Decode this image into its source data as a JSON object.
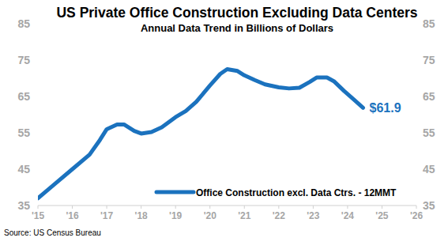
{
  "chart_data": {
    "type": "line",
    "title": "US Private Office Construction Excluding Data Centers",
    "subtitle": "Annual Data Trend in Billions of Dollars",
    "source": "Source: US Census Bureau",
    "x": [
      2015.0,
      2015.5,
      2016.0,
      2016.5,
      2016.8,
      2017.0,
      2017.3,
      2017.5,
      2017.8,
      2018.0,
      2018.3,
      2018.6,
      2019.0,
      2019.3,
      2019.6,
      2020.0,
      2020.3,
      2020.5,
      2020.8,
      2021.0,
      2021.3,
      2021.6,
      2022.0,
      2022.3,
      2022.6,
      2022.9,
      2023.1,
      2023.4,
      2023.6,
      2023.9,
      2024.2,
      2024.45
    ],
    "series": [
      {
        "name": "Office Construction excl. Data Ctrs. - 12MMT",
        "color": "#1b72be",
        "values": [
          37,
          41,
          45,
          49,
          53,
          56,
          57.3,
          57.3,
          55.5,
          54.8,
          55.2,
          56.5,
          59.3,
          61,
          63.5,
          68,
          71.2,
          72.5,
          72,
          70.8,
          69.5,
          68.3,
          67.5,
          67.2,
          67.4,
          69,
          70.2,
          70.2,
          69.2,
          66.5,
          64,
          61.9
        ],
        "value_labels": [
          null,
          null,
          null,
          null,
          null,
          null,
          null,
          null,
          null,
          null,
          null,
          null,
          null,
          null,
          null,
          null,
          null,
          null,
          null,
          null,
          null,
          null,
          null,
          null,
          null,
          null,
          null,
          null,
          null,
          null,
          null,
          "$61.9"
        ]
      }
    ],
    "xlim": [
      2015,
      2026
    ],
    "xticks": [
      {
        "value": 2015,
        "label": "'15"
      },
      {
        "value": 2016,
        "label": "'16"
      },
      {
        "value": 2017,
        "label": "'17"
      },
      {
        "value": 2018,
        "label": "'18"
      },
      {
        "value": 2019,
        "label": "'19"
      },
      {
        "value": 2020,
        "label": "'20"
      },
      {
        "value": 2021,
        "label": "'21"
      },
      {
        "value": 2022,
        "label": "'22"
      },
      {
        "value": 2023,
        "label": "'23"
      },
      {
        "value": 2024,
        "label": "'24"
      },
      {
        "value": 2025,
        "label": "'25"
      },
      {
        "value": 2026,
        "label": "'26"
      }
    ],
    "ylim": [
      35,
      85
    ],
    "yticks": [
      35,
      45,
      55,
      65,
      75,
      85
    ],
    "y2lim": [
      35,
      85
    ],
    "y2ticks": [
      35,
      45,
      55,
      65,
      75,
      85
    ],
    "grid": false,
    "legend": "bottom-right",
    "data_labels": true
  }
}
